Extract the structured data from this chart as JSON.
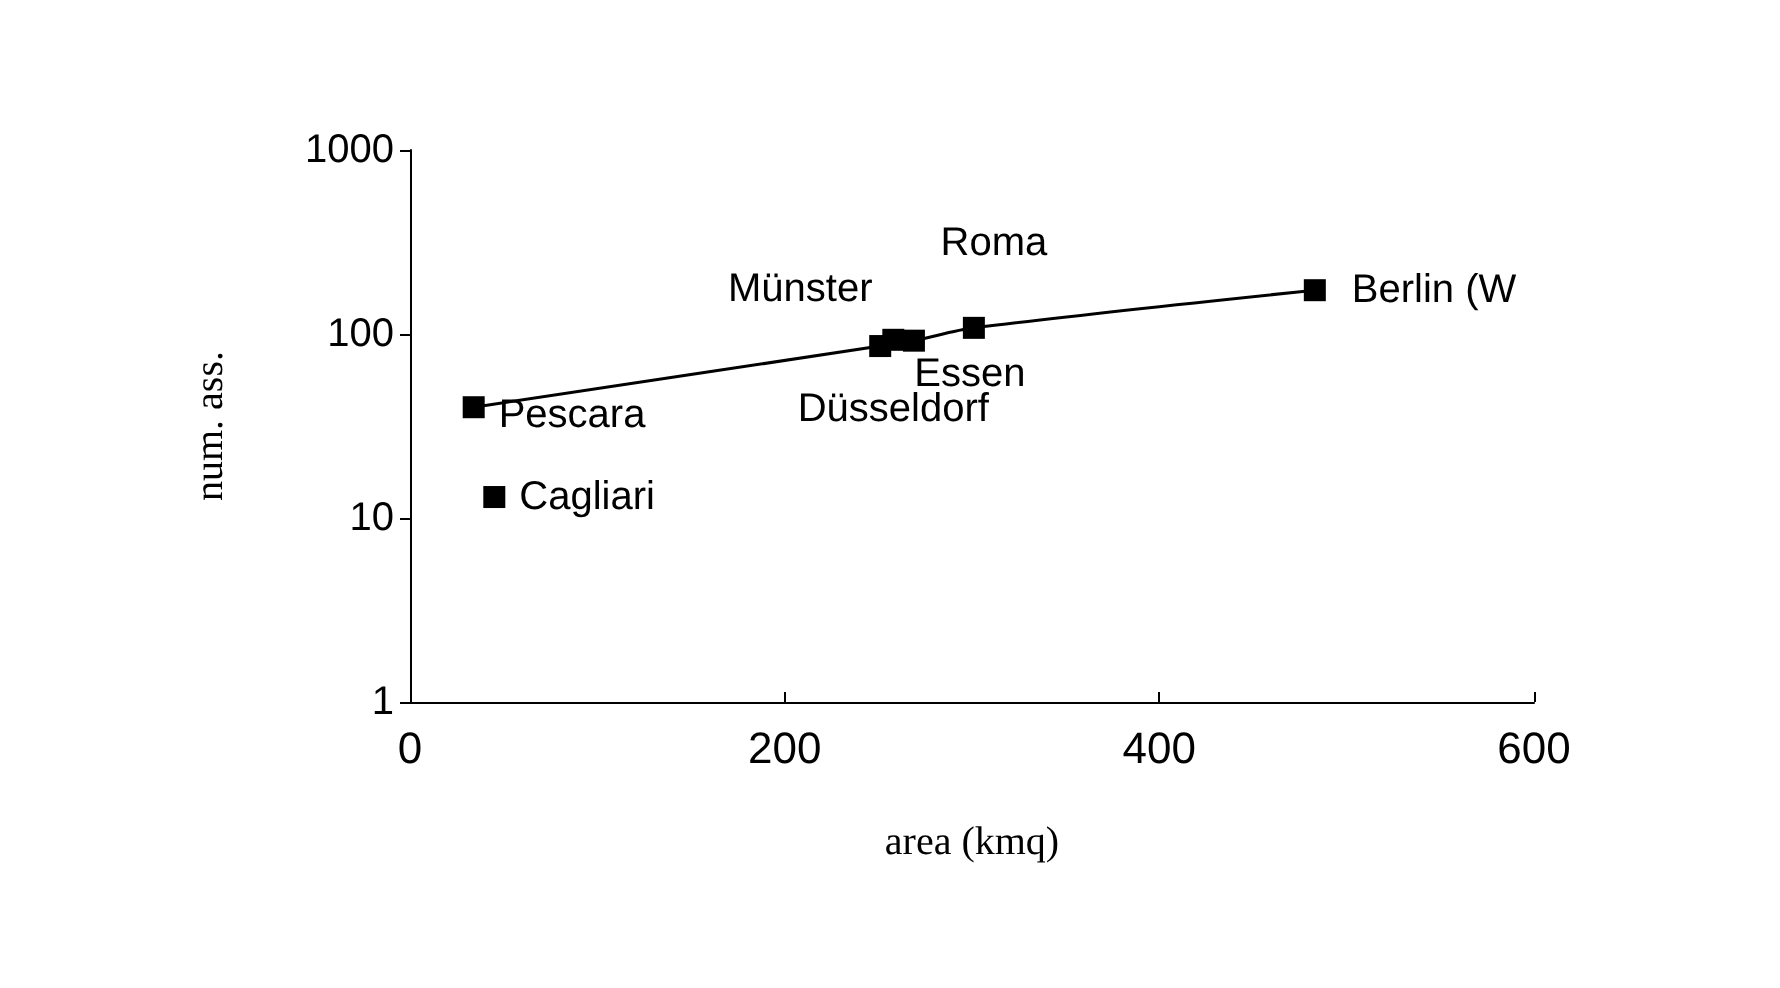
{
  "chart_data": {
    "type": "scatter",
    "xlabel": "area (kmq)",
    "ylabel": "num. ass.",
    "xlim": [
      0,
      600
    ],
    "xticks": [
      0,
      200,
      400,
      600
    ],
    "ylim": [
      1,
      1000
    ],
    "yticks": [
      1,
      10,
      100,
      1000
    ],
    "log": "y",
    "grid": false,
    "marker": "square",
    "series": [
      {
        "type": "line",
        "color": "#000000",
        "marker": "none",
        "x": [
          34,
          251,
          269,
          301,
          483
        ],
        "values": [
          40,
          86,
          92,
          108,
          173
        ]
      },
      {
        "color": "#000000",
        "x": [
          34,
          45,
          251,
          258,
          269,
          301,
          483
        ],
        "values": [
          40,
          13,
          86,
          93,
          92,
          108,
          173
        ],
        "value_labels": [
          "Pescara",
          "Cagliari",
          "Münster",
          "Düsseldorf",
          "Essen",
          "Roma",
          "Berlin (W"
        ]
      }
    ]
  }
}
